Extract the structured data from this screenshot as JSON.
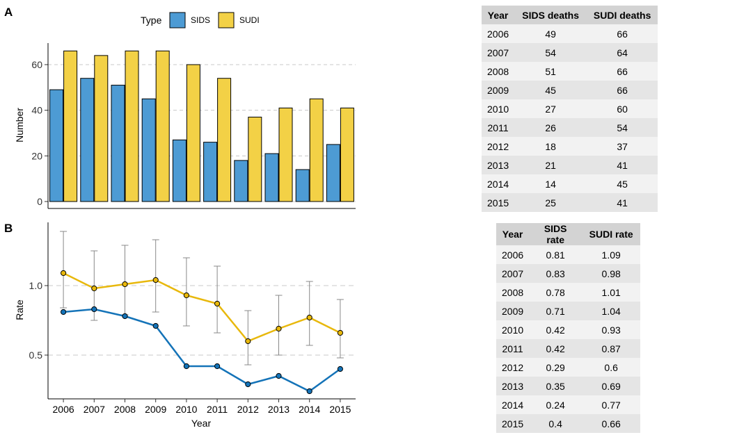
{
  "panels": {
    "a": "A",
    "b": "B"
  },
  "colors": {
    "sids": "#4d9bd4",
    "sudi": "#f3d146",
    "sids_line": "#1473b8",
    "sudi_line": "#e8b80c"
  },
  "chart_data": [
    {
      "type": "bar",
      "panel": "A",
      "legend": {
        "title": "Type",
        "position": "top"
      },
      "categories": [
        "2006",
        "2007",
        "2008",
        "2009",
        "2010",
        "2011",
        "2012",
        "2013",
        "2014",
        "2015"
      ],
      "series": [
        {
          "name": "SIDS",
          "values": [
            49,
            54,
            51,
            45,
            27,
            26,
            18,
            21,
            14,
            25
          ]
        },
        {
          "name": "SUDI",
          "values": [
            66,
            64,
            66,
            66,
            60,
            54,
            37,
            41,
            45,
            41
          ]
        }
      ],
      "ylabel": "Number",
      "ylim": [
        0,
        70
      ],
      "yticks": [
        0,
        20,
        40,
        60
      ],
      "grid": "horizontal-dashed"
    },
    {
      "type": "line",
      "panel": "B",
      "x": [
        "2006",
        "2007",
        "2008",
        "2009",
        "2010",
        "2011",
        "2012",
        "2013",
        "2014",
        "2015"
      ],
      "series": [
        {
          "name": "SIDS",
          "values": [
            0.81,
            0.83,
            0.78,
            0.71,
            0.42,
            0.42,
            0.29,
            0.35,
            0.24,
            0.4
          ]
        },
        {
          "name": "SUDI",
          "values": [
            1.09,
            0.98,
            1.01,
            1.04,
            0.93,
            0.87,
            0.6,
            0.69,
            0.77,
            0.66
          ],
          "error_low": [
            0.84,
            0.75,
            0.79,
            0.81,
            0.71,
            0.66,
            0.43,
            0.5,
            0.57,
            0.48
          ],
          "error_high": [
            1.39,
            1.25,
            1.29,
            1.33,
            1.2,
            1.14,
            0.82,
            0.93,
            1.03,
            0.9
          ]
        }
      ],
      "xlabel": "Year",
      "ylabel": "Rate",
      "ylim": [
        0.2,
        1.45
      ],
      "yticks": [
        0.5,
        1.0
      ],
      "ytick_labels": [
        "0.5",
        "1.0"
      ],
      "grid": "horizontal-dashed"
    }
  ],
  "table_deaths": {
    "headers": [
      "Year",
      "SIDS deaths",
      "SUDI deaths"
    ],
    "rows": [
      [
        "2006",
        "49",
        "66"
      ],
      [
        "2007",
        "54",
        "64"
      ],
      [
        "2008",
        "51",
        "66"
      ],
      [
        "2009",
        "45",
        "66"
      ],
      [
        "2010",
        "27",
        "60"
      ],
      [
        "2011",
        "26",
        "54"
      ],
      [
        "2012",
        "18",
        "37"
      ],
      [
        "2013",
        "21",
        "41"
      ],
      [
        "2014",
        "14",
        "45"
      ],
      [
        "2015",
        "25",
        "41"
      ]
    ]
  },
  "table_rates": {
    "headers": [
      "Year",
      "SIDS rate",
      "SUDI rate"
    ],
    "rows": [
      [
        "2006",
        "0.81",
        "1.09"
      ],
      [
        "2007",
        "0.83",
        "0.98"
      ],
      [
        "2008",
        "0.78",
        "1.01"
      ],
      [
        "2009",
        "0.71",
        "1.04"
      ],
      [
        "2010",
        "0.42",
        "0.93"
      ],
      [
        "2011",
        "0.42",
        "0.87"
      ],
      [
        "2012",
        "0.29",
        "0.6"
      ],
      [
        "2013",
        "0.35",
        "0.69"
      ],
      [
        "2014",
        "0.24",
        "0.77"
      ],
      [
        "2015",
        "0.4",
        "0.66"
      ]
    ]
  }
}
